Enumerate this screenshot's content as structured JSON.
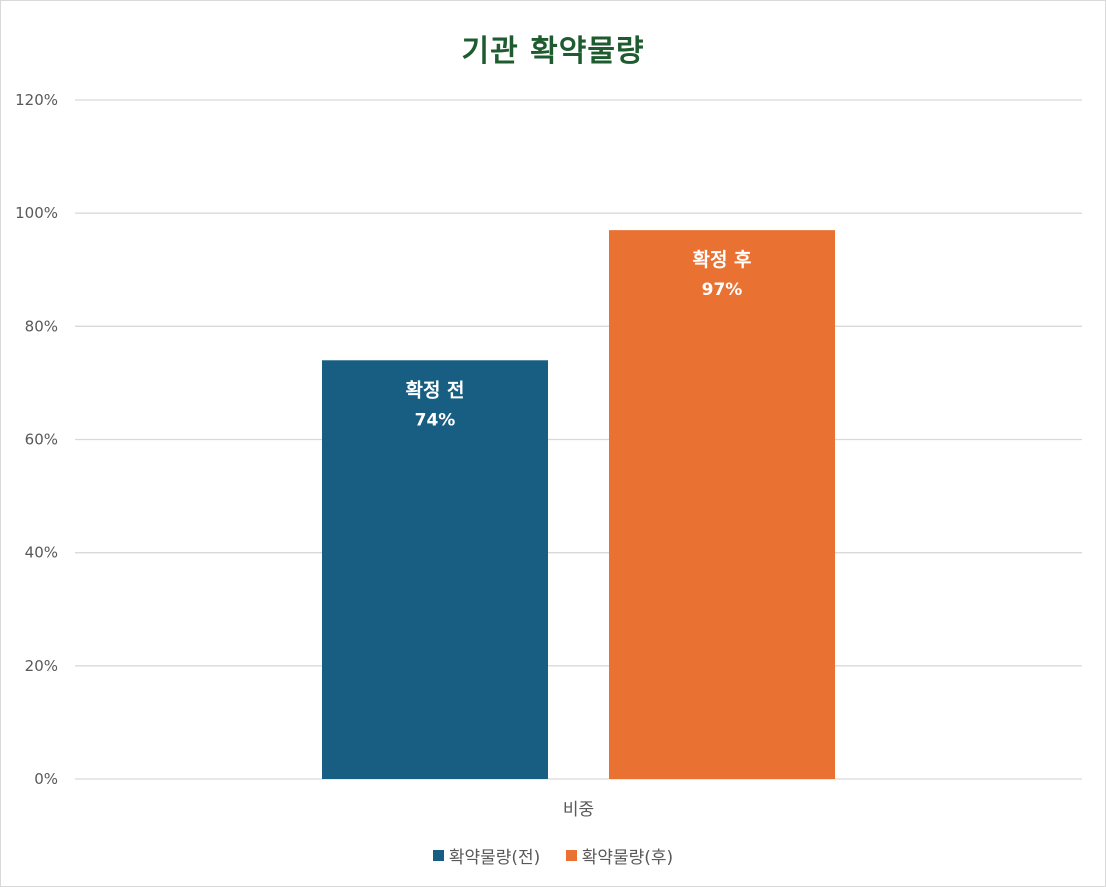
{
  "chart_data": {
    "type": "bar",
    "title": "기관 확약물량",
    "categories": [
      "비중"
    ],
    "series": [
      {
        "name": "확약물량(전)",
        "data_label_name": "확정 전",
        "values": [
          74
        ],
        "value_label": "74%",
        "color": "#175e82"
      },
      {
        "name": "확약물량(후)",
        "data_label_name": "확정 후",
        "values": [
          97
        ],
        "value_label": "97%",
        "color": "#e97132"
      }
    ],
    "ylim": [
      0,
      120
    ],
    "yticks": [
      "0%",
      "20%",
      "40%",
      "60%",
      "80%",
      "100%",
      "120%"
    ],
    "ytick_values": [
      0,
      20,
      40,
      60,
      80,
      100,
      120
    ],
    "grid": true,
    "legend_position": "bottom",
    "xlabel": "",
    "ylabel": ""
  }
}
